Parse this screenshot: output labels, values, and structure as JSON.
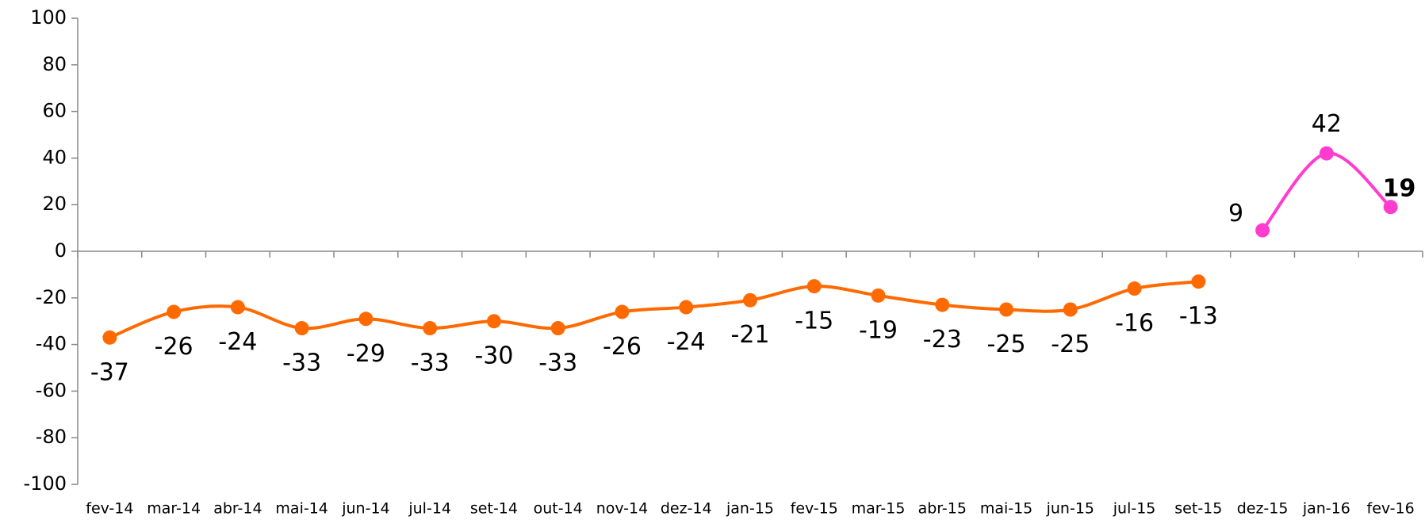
{
  "chart_data": {
    "type": "line",
    "categories": [
      "fev-14",
      "mar-14",
      "abr-14",
      "mai-14",
      "jun-14",
      "jul-14",
      "set-14",
      "out-14",
      "nov-14",
      "dez-14",
      "jan-15",
      "fev-15",
      "mar-15",
      "abr-15",
      "mai-15",
      "jun-15",
      "jul-15",
      "set-15",
      "dez-15",
      "jan-16",
      "fev-16"
    ],
    "series": [
      {
        "color": "#ff6a00",
        "values": [
          -37,
          -26,
          -24,
          -33,
          -29,
          -33,
          -30,
          -33,
          -26,
          -24,
          -21,
          -15,
          -19,
          -23,
          -25,
          -25,
          -16,
          -13,
          null,
          null,
          null
        ]
      },
      {
        "color": "#ff3ccf",
        "values": [
          null,
          null,
          null,
          null,
          null,
          null,
          null,
          null,
          null,
          null,
          null,
          null,
          null,
          null,
          null,
          null,
          null,
          null,
          9,
          42,
          19
        ]
      }
    ],
    "ylim": [
      -100,
      100
    ],
    "yticks": [
      -100,
      -80,
      -60,
      -40,
      -20,
      0,
      20,
      40,
      60,
      80,
      100
    ],
    "grid": false
  }
}
